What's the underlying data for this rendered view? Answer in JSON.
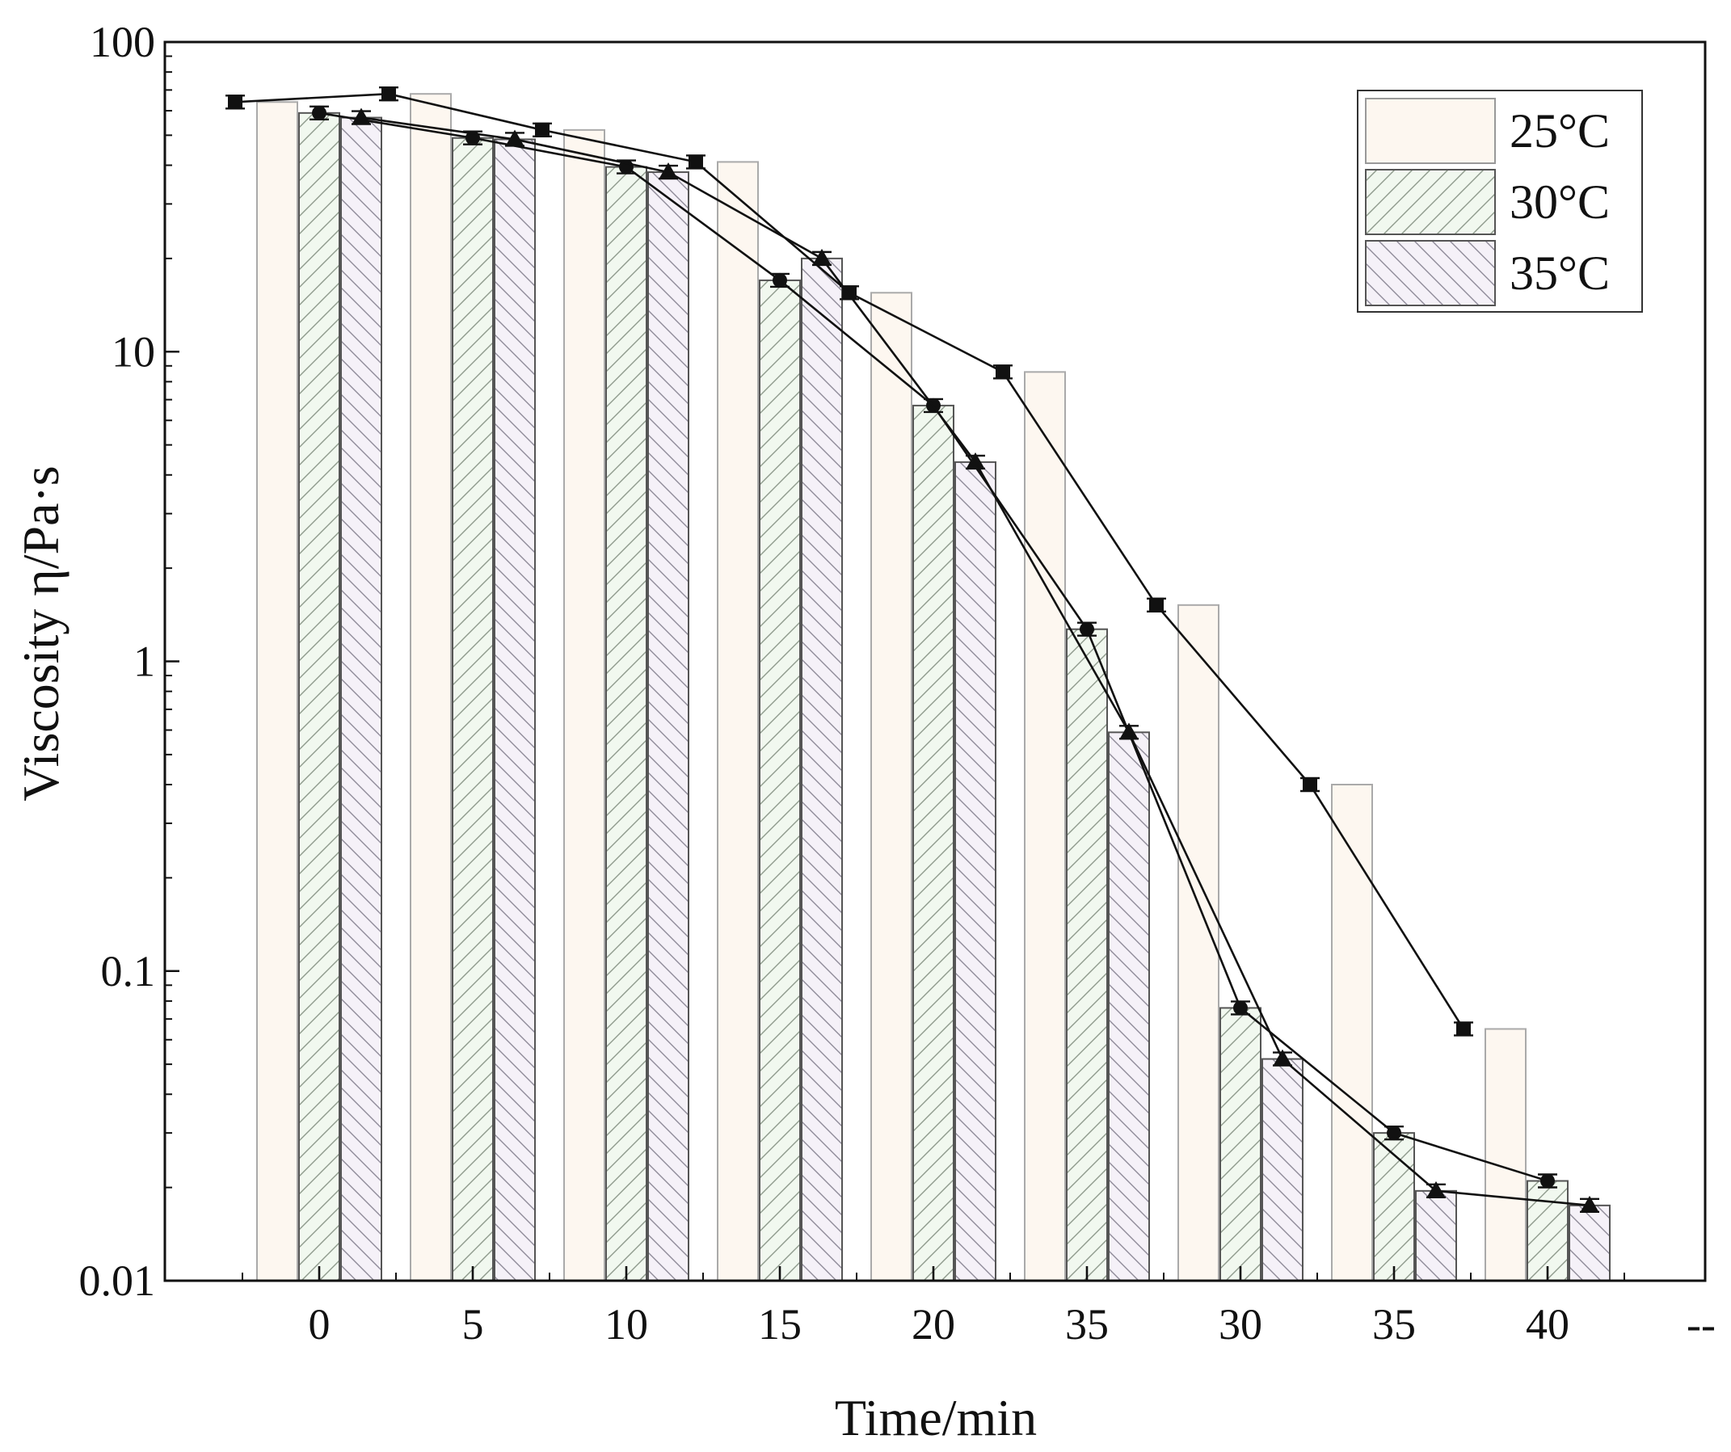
{
  "chart_data": {
    "type": "bar",
    "yscale": "log",
    "title": "",
    "xlabel": "Time/min",
    "ylabel": "Viscosity η/Pa·s",
    "categories": [
      "0",
      "5",
      "10",
      "15",
      "20",
      "35",
      "30",
      "35",
      "40",
      "--"
    ],
    "ylim": [
      0.01,
      100
    ],
    "yticks": [
      0.01,
      0.1,
      1,
      10,
      100
    ],
    "ytick_labels": [
      "0.01",
      "0.1",
      "1",
      "10",
      "100"
    ],
    "legend_position": "top-right",
    "series": [
      {
        "name": "25°C",
        "fill": "#fdf7f0",
        "pattern": "none",
        "marker": "square",
        "values": [
          64,
          68,
          52,
          41,
          15.5,
          8.6,
          1.52,
          0.4,
          0.065,
          null
        ]
      },
      {
        "name": "30°C",
        "fill": "#f1f8ef",
        "pattern": "forward-hatch",
        "marker": "circle",
        "values": [
          59,
          49,
          39.5,
          17,
          6.7,
          1.27,
          0.076,
          0.03,
          0.021,
          null
        ]
      },
      {
        "name": "35°C",
        "fill": "#f5f1f8",
        "pattern": "back-hatch",
        "marker": "triangle",
        "values": [
          57,
          48.5,
          38,
          20,
          4.4,
          0.59,
          0.052,
          0.0195,
          0.0175,
          null
        ]
      }
    ]
  }
}
